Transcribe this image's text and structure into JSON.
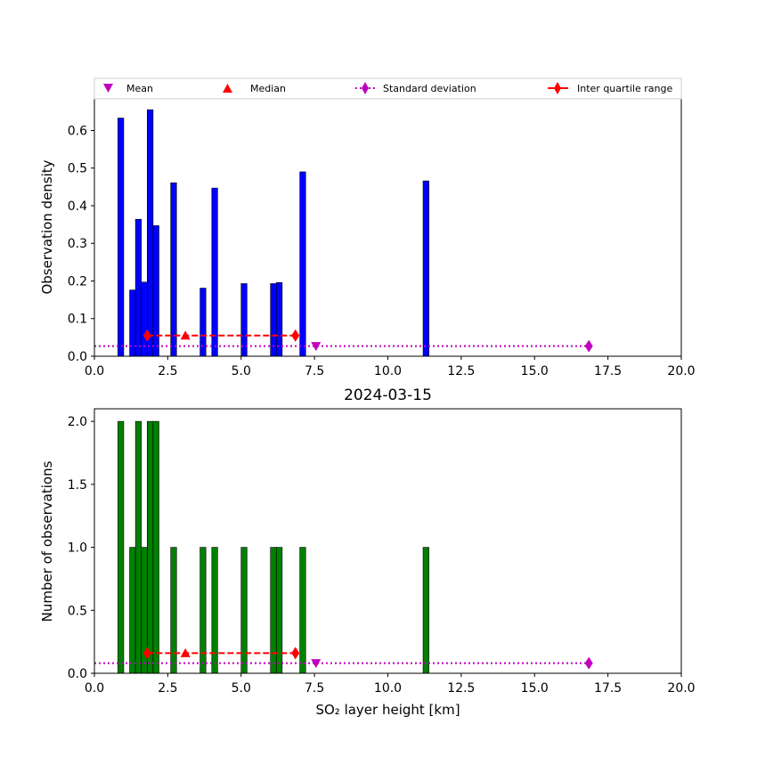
{
  "chart_data": [
    {
      "type": "bar",
      "ylabel": "Observation density",
      "xlabel": "",
      "xlim": [
        0,
        20
      ],
      "ylim": [
        0,
        0.684
      ],
      "xticks": [
        "0.0",
        "2.5",
        "5.0",
        "7.5",
        "10.0",
        "12.5",
        "15.0",
        "17.5",
        "20.0"
      ],
      "yticks": [
        "0.0",
        "0.1",
        "0.2",
        "0.3",
        "0.4",
        "0.5",
        "0.6"
      ],
      "bar_color": "#0000ff",
      "bars": [
        {
          "x": 0.9,
          "value": 0.633
        },
        {
          "x": 1.3,
          "value": 0.176
        },
        {
          "x": 1.5,
          "value": 0.364
        },
        {
          "x": 1.7,
          "value": 0.197
        },
        {
          "x": 1.9,
          "value": 0.655
        },
        {
          "x": 2.1,
          "value": 0.347
        },
        {
          "x": 2.7,
          "value": 0.461
        },
        {
          "x": 3.7,
          "value": 0.181
        },
        {
          "x": 4.1,
          "value": 0.447
        },
        {
          "x": 5.1,
          "value": 0.193
        },
        {
          "x": 6.1,
          "value": 0.193
        },
        {
          "x": 6.3,
          "value": 0.196
        },
        {
          "x": 7.1,
          "value": 0.49
        },
        {
          "x": 11.3,
          "value": 0.466
        }
      ],
      "mean": {
        "x": 7.55,
        "y": 0.027
      },
      "median": {
        "x": 3.1,
        "y": 0.055
      },
      "std": {
        "x1": 0.0,
        "x2": 16.85,
        "y": 0.027
      },
      "iqr": {
        "x1": 1.8,
        "x2": 6.85,
        "y": 0.055
      },
      "legend": {
        "placement": "top",
        "entries": [
          "Mean",
          "Median",
          "Standard deviation",
          "Inter quartile range"
        ]
      }
    },
    {
      "type": "bar",
      "title": "2024-03-15",
      "ylabel": "Number of observations",
      "xlabel": "SO₂ layer height [km]",
      "xlim": [
        0,
        20
      ],
      "ylim": [
        0,
        2.1
      ],
      "xticks": [
        "0.0",
        "2.5",
        "5.0",
        "7.5",
        "10.0",
        "12.5",
        "15.0",
        "17.5",
        "20.0"
      ],
      "yticks": [
        "0.0",
        "0.5",
        "1.0",
        "1.5",
        "2.0"
      ],
      "bar_color": "#008000",
      "bars": [
        {
          "x": 0.9,
          "value": 2
        },
        {
          "x": 1.3,
          "value": 1
        },
        {
          "x": 1.5,
          "value": 2
        },
        {
          "x": 1.7,
          "value": 1
        },
        {
          "x": 1.9,
          "value": 2
        },
        {
          "x": 2.1,
          "value": 2
        },
        {
          "x": 2.7,
          "value": 1
        },
        {
          "x": 3.7,
          "value": 1
        },
        {
          "x": 4.1,
          "value": 1
        },
        {
          "x": 5.1,
          "value": 1
        },
        {
          "x": 6.1,
          "value": 1
        },
        {
          "x": 6.3,
          "value": 1
        },
        {
          "x": 7.1,
          "value": 1
        },
        {
          "x": 11.3,
          "value": 1
        }
      ],
      "mean": {
        "x": 7.55,
        "y": 0.08
      },
      "median": {
        "x": 3.1,
        "y": 0.16
      },
      "std": {
        "x1": 0.0,
        "x2": 16.85,
        "y": 0.08
      },
      "iqr": {
        "x1": 1.8,
        "x2": 6.85,
        "y": 0.16
      }
    }
  ],
  "colors": {
    "mean": "#bf00bf",
    "median": "#ff0000",
    "std": "#bf00bf",
    "iqr": "#ff0000"
  }
}
